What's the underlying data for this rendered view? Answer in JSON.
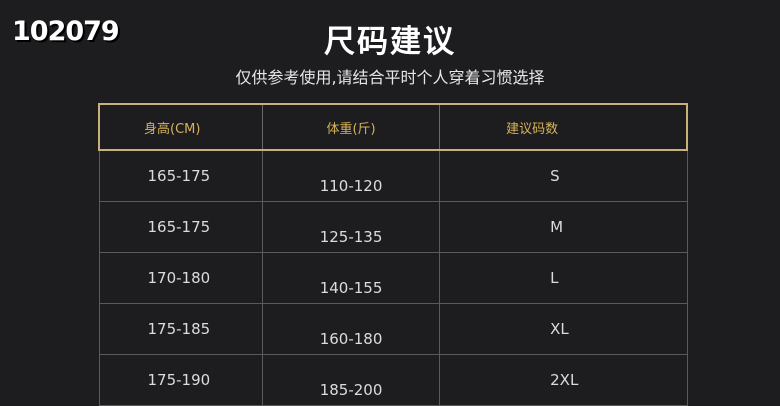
{
  "watermark": "102079",
  "title": "尺码建议",
  "subtitle": "仅供参考使用,请结合平时个人穿着习惯选择",
  "table": {
    "headers": [
      "身高(CM)",
      "体重(斤)",
      "建议码数"
    ],
    "rows": [
      [
        "165-175",
        "110-120",
        "S"
      ],
      [
        "165-175",
        "125-135",
        "M"
      ],
      [
        "170-180",
        "140-155",
        "L"
      ],
      [
        "175-185",
        "160-180",
        "XL"
      ],
      [
        "175-190",
        "185-200",
        "2XL"
      ]
    ]
  },
  "colors": {
    "background": "#1d1d1f",
    "header_text": "#d6b15a",
    "header_border": "#c9b27a"
  }
}
